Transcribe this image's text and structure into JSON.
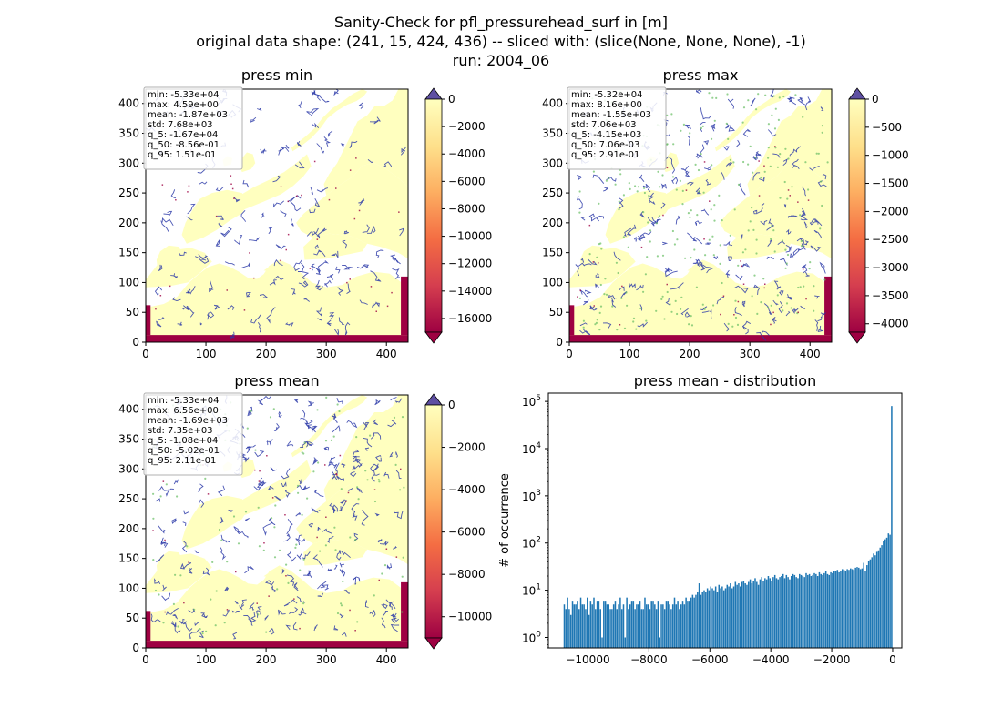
{
  "figure": {
    "title_lines": [
      "Sanity-Check for pfl_pressurehead_surf in [m]",
      "original data shape: (241, 15, 424, 436) -- sliced with: (slice(None, None, None), -1)",
      "run: 2004_06"
    ]
  },
  "colors": {
    "over": "#5e4fa2",
    "under": "#9e0142",
    "colormap": [
      "#9e0142",
      "#d53e4f",
      "#f46d43",
      "#fdae61",
      "#fee08b",
      "#ffffbf"
    ],
    "river": "#2b3aa8",
    "river_light": "#66bd63",
    "land": "#ffffbf",
    "bar": "#1f77b4"
  },
  "chart_data": [
    {
      "type": "heatmap",
      "title": "press min",
      "xlim": [
        0,
        436
      ],
      "ylim": [
        0,
        424
      ],
      "xticks": [
        0,
        100,
        200,
        300,
        400
      ],
      "yticks": [
        0,
        50,
        100,
        150,
        200,
        250,
        300,
        350,
        400
      ],
      "colorbar": {
        "min": -17000,
        "max": 0,
        "ticks": [
          0,
          -2000,
          -4000,
          -6000,
          -8000,
          -10000,
          -12000,
          -14000,
          -16000
        ],
        "extend": "both"
      },
      "stats": [
        "min: -5.33e+04",
        "max: 4.59e+00",
        "mean: -1.87e+03",
        "std: 7.68e+03",
        "q_5: -1.67e+04",
        "q_50: -8.56e-01",
        "q_95: 1.51e-01"
      ]
    },
    {
      "type": "heatmap",
      "title": "press max",
      "xlim": [
        0,
        436
      ],
      "ylim": [
        0,
        424
      ],
      "xticks": [
        0,
        100,
        200,
        300,
        400
      ],
      "yticks": [
        0,
        50,
        100,
        150,
        200,
        250,
        300,
        350,
        400
      ],
      "colorbar": {
        "min": -4150,
        "max": 0,
        "ticks": [
          0,
          -500,
          -1000,
          -1500,
          -2000,
          -2500,
          -3000,
          -3500,
          -4000
        ],
        "extend": "both"
      },
      "stats": [
        "min: -5.32e+04",
        "max: 8.16e+00",
        "mean: -1.55e+03",
        "std: 7.06e+03",
        "q_5: -4.15e+03",
        "q_50: 7.06e-03",
        "q_95: 2.91e-01"
      ]
    },
    {
      "type": "heatmap",
      "title": "press mean",
      "xlim": [
        0,
        436
      ],
      "ylim": [
        0,
        424
      ],
      "xticks": [
        0,
        100,
        200,
        300,
        400
      ],
      "yticks": [
        0,
        50,
        100,
        150,
        200,
        250,
        300,
        350,
        400
      ],
      "colorbar": {
        "min": -11000,
        "max": 0,
        "ticks": [
          0,
          -2000,
          -4000,
          -6000,
          -8000,
          -10000
        ],
        "extend": "both"
      },
      "stats": [
        "min: -5.33e+04",
        "max: 6.56e+00",
        "mean: -1.69e+03",
        "std: 7.35e+03",
        "q_5: -1.08e+04",
        "q_50: -5.02e-01",
        "q_95: 2.11e-01"
      ]
    },
    {
      "type": "bar",
      "title": "press mean - distribution",
      "ylabel": "# of occurrence",
      "yscale": "log",
      "xlim": [
        -11300,
        300
      ],
      "ylim": [
        0.6,
        150000
      ],
      "xticks": [
        -10000,
        -8000,
        -6000,
        -4000,
        -2000,
        0
      ],
      "yticks": [
        {
          "value": 1,
          "base": "10",
          "exp": "0"
        },
        {
          "value": 10,
          "base": "10",
          "exp": "1"
        },
        {
          "value": 100,
          "base": "10",
          "exp": "2"
        },
        {
          "value": 1000,
          "base": "10",
          "exp": "3"
        },
        {
          "value": 10000,
          "base": "10",
          "exp": "4"
        },
        {
          "value": 100000,
          "base": "10",
          "exp": "5"
        }
      ],
      "bin_width": 54,
      "bin_starts": [
        -10800,
        -10746,
        -10692,
        -10638,
        -10584,
        -10530,
        -10476,
        -10422,
        -10368,
        -10314,
        -10260,
        -10206,
        -10152,
        -10098,
        -10044,
        -9990,
        -9936,
        -9882,
        -9828,
        -9774,
        -9720,
        -9666,
        -9612,
        -9558,
        -9504,
        -9450,
        -9396,
        -9342,
        -9288,
        -9234,
        -9180,
        -9126,
        -9072,
        -9018,
        -8964,
        -8910,
        -8856,
        -8802,
        -8748,
        -8694,
        -8640,
        -8586,
        -8532,
        -8478,
        -8424,
        -8370,
        -8316,
        -8262,
        -8208,
        -8154,
        -8100,
        -8046,
        -7992,
        -7938,
        -7884,
        -7830,
        -7776,
        -7722,
        -7668,
        -7614,
        -7560,
        -7506,
        -7452,
        -7398,
        -7344,
        -7290,
        -7236,
        -7182,
        -7128,
        -7074,
        -7020,
        -6966,
        -6912,
        -6858,
        -6804,
        -6750,
        -6696,
        -6642,
        -6588,
        -6534,
        -6480,
        -6426,
        -6372,
        -6318,
        -6264,
        -6210,
        -6156,
        -6102,
        -6048,
        -5994,
        -5940,
        -5886,
        -5832,
        -5778,
        -5724,
        -5670,
        -5616,
        -5562,
        -5508,
        -5454,
        -5400,
        -5346,
        -5292,
        -5238,
        -5184,
        -5130,
        -5076,
        -5022,
        -4968,
        -4914,
        -4860,
        -4806,
        -4752,
        -4698,
        -4644,
        -4590,
        -4536,
        -4482,
        -4428,
        -4374,
        -4320,
        -4266,
        -4212,
        -4158,
        -4104,
        -4050,
        -3996,
        -3942,
        -3888,
        -3834,
        -3780,
        -3726,
        -3672,
        -3618,
        -3564,
        -3510,
        -3456,
        -3402,
        -3348,
        -3294,
        -3240,
        -3186,
        -3132,
        -3078,
        -3024,
        -2970,
        -2916,
        -2862,
        -2808,
        -2754,
        -2700,
        -2646,
        -2592,
        -2538,
        -2484,
        -2430,
        -2376,
        -2322,
        -2268,
        -2214,
        -2160,
        -2106,
        -2052,
        -1998,
        -1944,
        -1890,
        -1836,
        -1782,
        -1728,
        -1674,
        -1620,
        -1566,
        -1512,
        -1458,
        -1404,
        -1350,
        -1296,
        -1242,
        -1188,
        -1134,
        -1080,
        -1026,
        -972,
        -918,
        -864,
        -810,
        -756,
        -702,
        -648,
        -594,
        -540,
        -486,
        -432,
        -378,
        -324,
        -270,
        -216,
        -162,
        -108,
        -54
      ],
      "counts": [
        5,
        4,
        7,
        4,
        3,
        6,
        5,
        5,
        6,
        4,
        7,
        5,
        5,
        4,
        7,
        3,
        6,
        5,
        7,
        4,
        6,
        6,
        4,
        1,
        6,
        6,
        5,
        5,
        4,
        4,
        5,
        6,
        4,
        5,
        7,
        4,
        5,
        1,
        7,
        4,
        5,
        6,
        6,
        4,
        5,
        5,
        6,
        4,
        4,
        7,
        5,
        5,
        4,
        6,
        6,
        5,
        4,
        6,
        1,
        5,
        5,
        4,
        6,
        6,
        5,
        4,
        5,
        7,
        5,
        6,
        4,
        5,
        6,
        5,
        7,
        6,
        6,
        7,
        8,
        7,
        8,
        9,
        14,
        8,
        9,
        10,
        9,
        11,
        10,
        12,
        11,
        10,
        12,
        9,
        13,
        11,
        12,
        10,
        11,
        13,
        12,
        14,
        11,
        12,
        15,
        13,
        14,
        12,
        15,
        16,
        14,
        13,
        15,
        17,
        14,
        16,
        18,
        15,
        13,
        17,
        19,
        16,
        18,
        17,
        20,
        18,
        16,
        19,
        21,
        18,
        17,
        19,
        20,
        22,
        18,
        21,
        19,
        17,
        20,
        22,
        21,
        19,
        18,
        22,
        21,
        20,
        19,
        23,
        21,
        22,
        20,
        21,
        23,
        22,
        20,
        24,
        22,
        21,
        23,
        25,
        22,
        21,
        24,
        23,
        26,
        25,
        27,
        24,
        26,
        28,
        27,
        26,
        28,
        27,
        29,
        28,
        27,
        30,
        31,
        30,
        28,
        29,
        38,
        25,
        34,
        42,
        45,
        50,
        60,
        55,
        65,
        70,
        80,
        90,
        110,
        120,
        130,
        160,
        150,
        80000
      ]
    }
  ]
}
